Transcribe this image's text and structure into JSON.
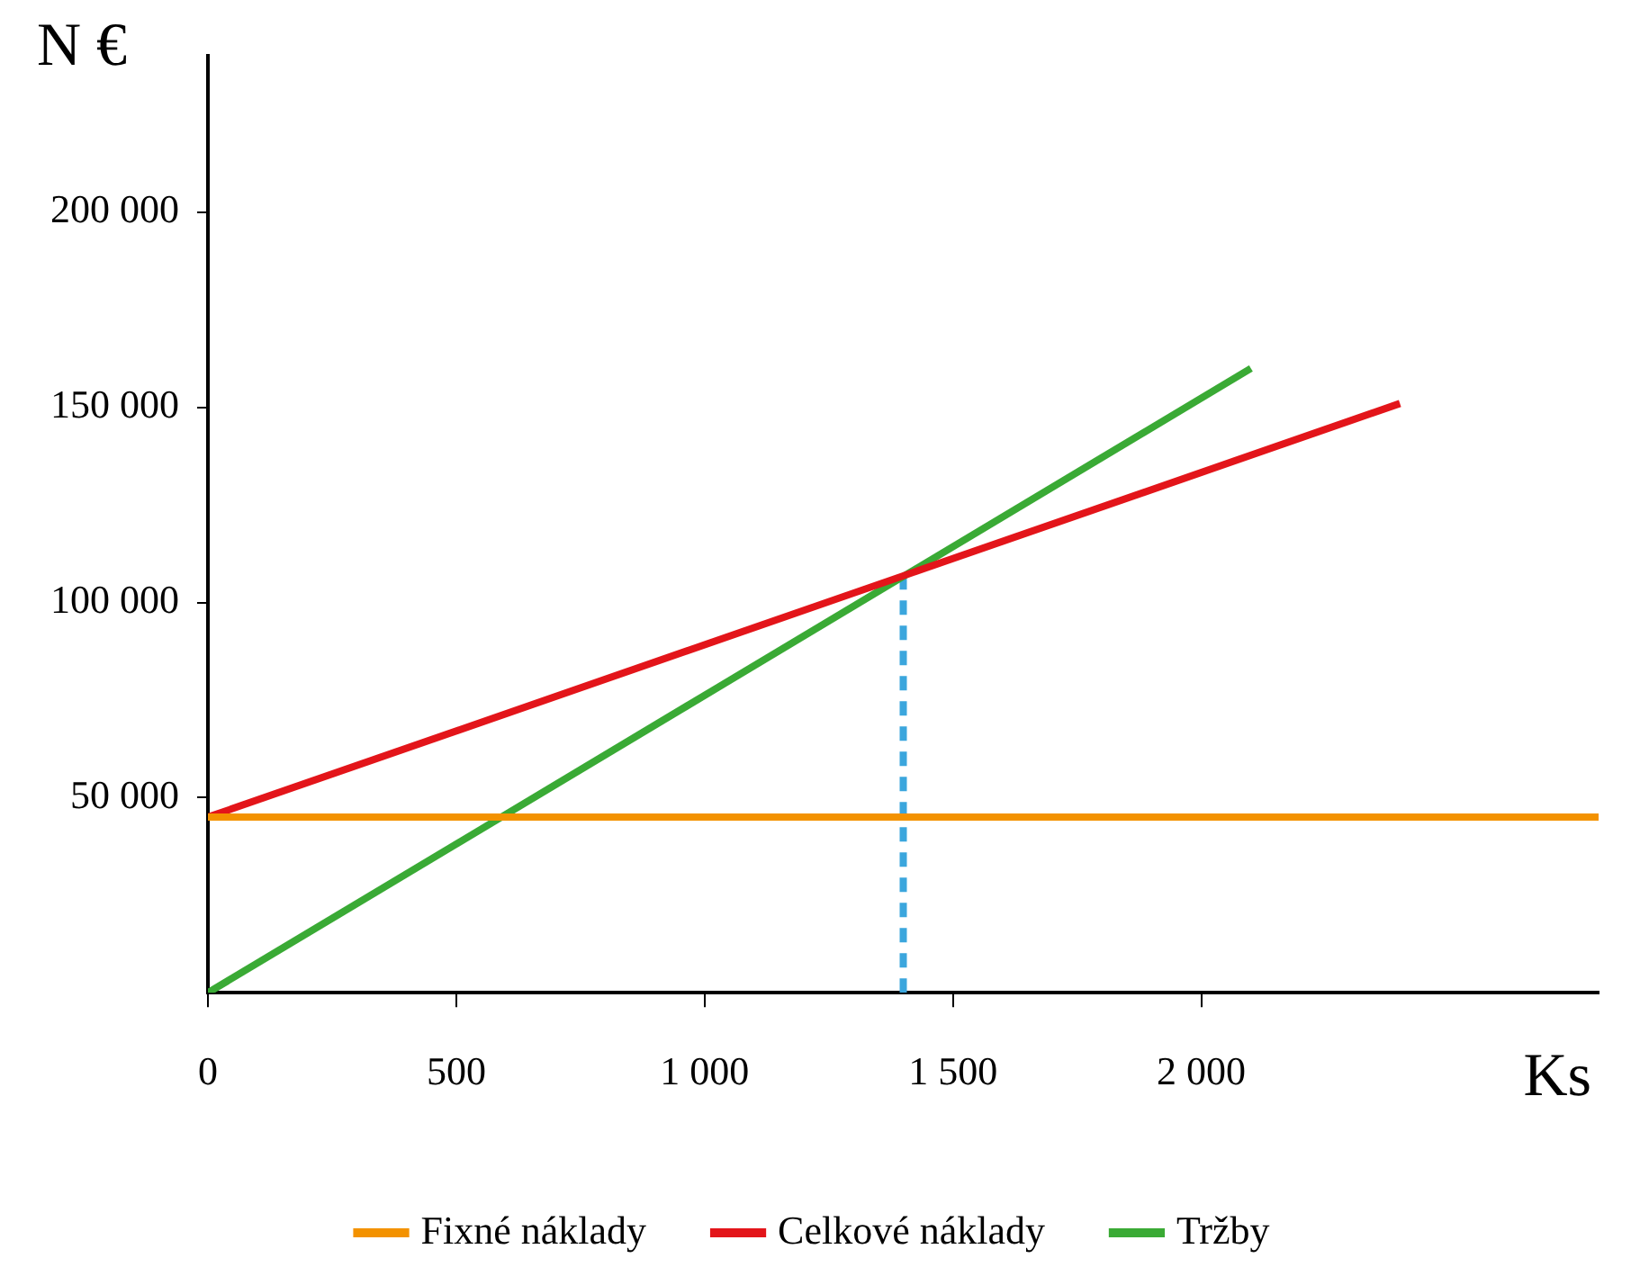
{
  "chart_data": {
    "type": "line",
    "xlabel": "Ks",
    "ylabel": "N €",
    "xlim": [
      0,
      2800
    ],
    "ylim": [
      0,
      240000
    ],
    "xticks": [
      0,
      {
        "value": 500,
        "label": "500"
      },
      {
        "value": 1000,
        "label": "1 000"
      },
      {
        "value": 1500,
        "label": "1 500"
      },
      {
        "value": 2000,
        "label": "2 000"
      }
    ],
    "yticks": [
      {
        "value": 50000,
        "label": "50 000"
      },
      {
        "value": 100000,
        "label": "100 000"
      },
      {
        "value": 150000,
        "label": "150 000"
      },
      {
        "value": 200000,
        "label": "200 000"
      }
    ],
    "series": [
      {
        "name": "Fixné náklady",
        "color": "#f39200",
        "x": [
          0,
          2800
        ],
        "values": [
          45000,
          45000
        ]
      },
      {
        "name": "Celkové náklady",
        "color": "#e3151a",
        "x": [
          0,
          2400
        ],
        "values": [
          45000,
          151000
        ]
      },
      {
        "name": "Tržby",
        "color": "#3aaa35",
        "x": [
          0,
          2100
        ],
        "values": [
          0,
          160000
        ]
      },
      {
        "color": "#3ba6dd",
        "x": [
          1400,
          1400
        ],
        "values": [
          0,
          107000
        ],
        "line_style": "dashed"
      }
    ],
    "grid": false,
    "legend": "bottom",
    "marker": "none"
  }
}
